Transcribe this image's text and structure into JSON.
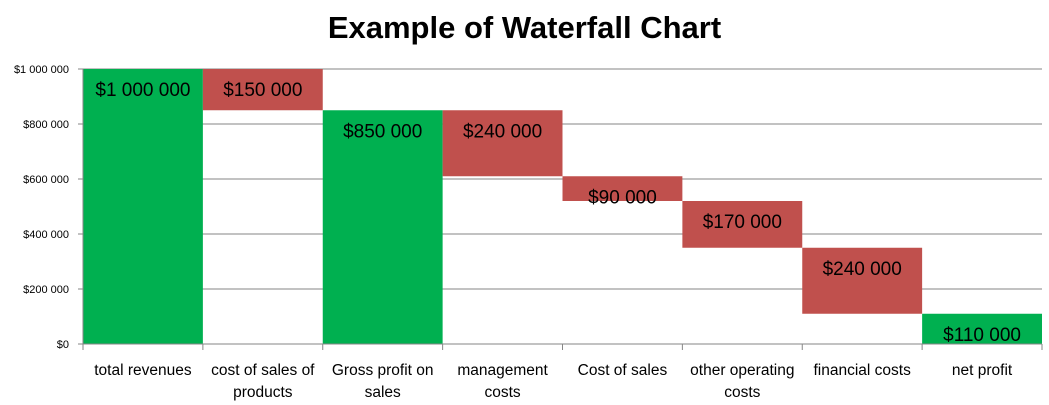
{
  "chart_data": {
    "type": "bar",
    "subtype": "waterfall",
    "title": "Example of Waterfall Chart",
    "xlabel": "",
    "ylabel": "",
    "ylim": [
      0,
      1000000
    ],
    "yticks": [
      {
        "value": 0,
        "label": "$0"
      },
      {
        "value": 200000,
        "label": "$200 000"
      },
      {
        "value": 400000,
        "label": "$400 000"
      },
      {
        "value": 600000,
        "label": "$600 000"
      },
      {
        "value": 800000,
        "label": "$800 000"
      },
      {
        "value": 1000000,
        "label": "$1 000 000"
      }
    ],
    "grid": true,
    "colors": {
      "total": "#00b050",
      "decrease": "#c0504d",
      "grid": "#868686",
      "axis": "#868686"
    },
    "bars": [
      {
        "category": [
          "total revenues"
        ],
        "kind": "total",
        "start": 0,
        "end": 1000000,
        "label": "$1 000 000"
      },
      {
        "category": [
          "cost of sales of",
          "products"
        ],
        "kind": "decrease",
        "start": 850000,
        "end": 1000000,
        "label": "$150 000"
      },
      {
        "category": [
          "Gross profit on",
          "sales"
        ],
        "kind": "total",
        "start": 0,
        "end": 850000,
        "label": "$850 000"
      },
      {
        "category": [
          "management",
          "costs"
        ],
        "kind": "decrease",
        "start": 610000,
        "end": 850000,
        "label": "$240 000"
      },
      {
        "category": [
          "Cost of sales"
        ],
        "kind": "decrease",
        "start": 520000,
        "end": 610000,
        "label": "$90 000"
      },
      {
        "category": [
          "other operating",
          "costs"
        ],
        "kind": "decrease",
        "start": 350000,
        "end": 520000,
        "label": "$170 000"
      },
      {
        "category": [
          "financial costs"
        ],
        "kind": "decrease",
        "start": 110000,
        "end": 350000,
        "label": "$240 000"
      },
      {
        "category": [
          "net profit"
        ],
        "kind": "total",
        "start": 0,
        "end": 110000,
        "label": "$110 000"
      }
    ]
  }
}
